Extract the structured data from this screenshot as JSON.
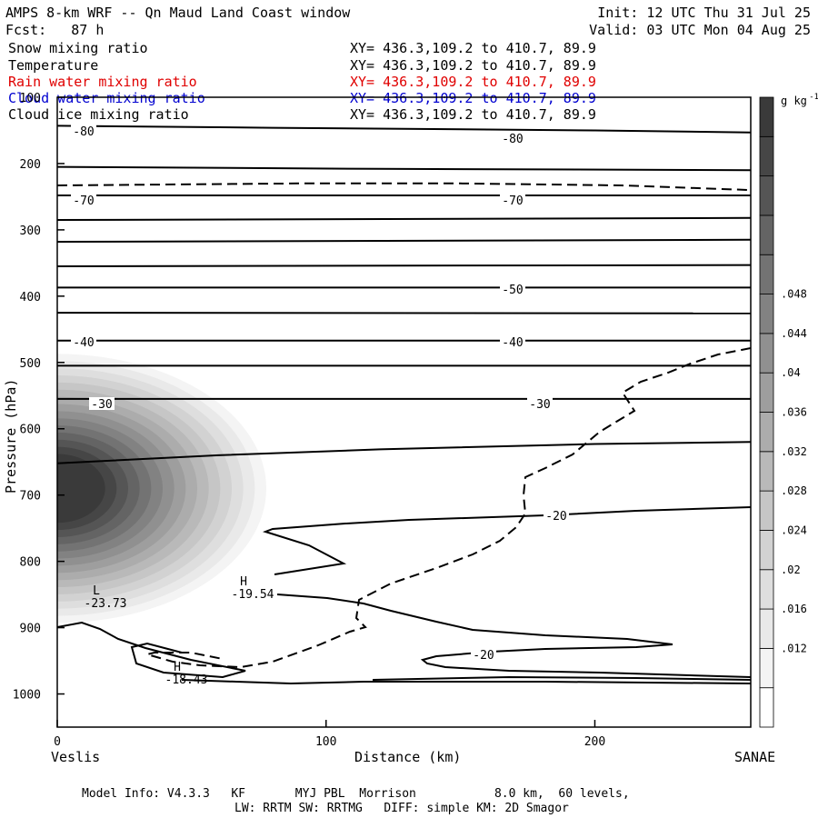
{
  "header": {
    "title": "AMPS 8-km WRF -- Qn Maud Land Coast window",
    "init": "Init: 12 UTC Thu 31 Jul 25",
    "fcst": "Fcst:   87 h",
    "valid": "Valid: 03 UTC Mon 04 Aug 25",
    "fields": [
      {
        "name": "Snow mixing ratio",
        "xy": "XY= 436.3,109.2 to 410.7, 89.9",
        "color": "#000000"
      },
      {
        "name": "Temperature",
        "xy": "XY= 436.3,109.2 to 410.7, 89.9",
        "color": "#000000"
      },
      {
        "name": "Rain water mixing ratio",
        "xy": "XY= 436.3,109.2 to 410.7, 89.9",
        "color": "#e00000"
      },
      {
        "name": "Cloud water mixing ratio",
        "xy": "XY= 436.3,109.2 to 410.7, 89.9",
        "color": "#0000d0"
      },
      {
        "name": "Cloud ice mixing ratio",
        "xy": "XY= 436.3,109.2 to 410.7, 89.9",
        "color": "#000000"
      }
    ]
  },
  "footer": {
    "line1": "Model Info: V4.3.3   KF       MYJ PBL  Morrison           8.0 km,  60 levels,",
    "line2": "LW: RRTM SW: RRTMG   DIFF: simple KM: 2D Smagor"
  },
  "chart_data": {
    "type": "heatmap",
    "xlabel": "Distance (km)",
    "ylabel": "Pressure (hPa)",
    "x_ticks": [
      0,
      100,
      200
    ],
    "y_ticks": [
      100,
      200,
      300,
      400,
      500,
      600,
      700,
      800,
      900,
      1000
    ],
    "xlim": [
      0,
      258
    ],
    "ylim": [
      100,
      1050
    ],
    "start_label": "Veslis",
    "end_label": "SANAE",
    "colorbar": {
      "unit": "g kg",
      "unit_exp": "-1",
      "ticks": [
        ".012",
        ".016",
        ".02",
        ".024",
        ".028",
        ".032",
        ".036",
        ".04",
        ".044",
        ".048"
      ],
      "colors": [
        "#ffffff",
        "#f4f4f4",
        "#e9e9e9",
        "#dedede",
        "#d2d2d2",
        "#c6c6c6",
        "#b9b9b9",
        "#acacac",
        "#9e9e9e",
        "#909090",
        "#828282",
        "#737373",
        "#646464",
        "#555555",
        "#464646",
        "#3a3a3a"
      ]
    },
    "contour_labels": [
      "-80",
      "-70",
      "-50",
      "-40",
      "-30",
      "-20",
      "-80",
      "-70",
      "-40",
      "-30",
      "-20"
    ],
    "extrema": [
      {
        "kind": "L",
        "value": "-23.73"
      },
      {
        "kind": "H",
        "value": "-19.54"
      },
      {
        "kind": "H",
        "value": "-18.43"
      }
    ],
    "isotherms": [
      {
        "value": "-80",
        "points": [
          [
            0,
            143
          ],
          [
            80,
            146
          ],
          [
            200,
            150
          ],
          [
            258,
            153
          ]
        ]
      },
      {
        "value": "",
        "points": [
          [
            0,
            205
          ],
          [
            120,
            208
          ],
          [
            258,
            210
          ]
        ]
      },
      {
        "value": "-70",
        "points": [
          [
            0,
            248
          ],
          [
            150,
            248
          ],
          [
            258,
            248
          ]
        ]
      },
      {
        "value": "",
        "points": [
          [
            0,
            285
          ],
          [
            258,
            282
          ]
        ]
      },
      {
        "value": "",
        "points": [
          [
            0,
            318
          ],
          [
            258,
            315
          ]
        ]
      },
      {
        "value": "",
        "points": [
          [
            0,
            355
          ],
          [
            258,
            353
          ]
        ]
      },
      {
        "value": "-50",
        "points": [
          [
            0,
            387
          ],
          [
            258,
            387
          ]
        ]
      },
      {
        "value": "",
        "points": [
          [
            0,
            425
          ],
          [
            258,
            426
          ]
        ]
      },
      {
        "value": "-40",
        "points": [
          [
            0,
            467
          ],
          [
            258,
            467
          ]
        ]
      },
      {
        "value": "",
        "points": [
          [
            0,
            505
          ],
          [
            258,
            505
          ]
        ]
      },
      {
        "value": "-30",
        "points": [
          [
            0,
            555
          ],
          [
            258,
            555
          ]
        ]
      },
      {
        "value": "",
        "points": [
          [
            0,
            652
          ],
          [
            60,
            640
          ],
          [
            120,
            631
          ],
          [
            200,
            623
          ],
          [
            258,
            620
          ]
        ]
      }
    ],
    "dashed_line": [
      [
        0,
        233
      ],
      [
        90,
        230
      ],
      [
        150,
        230
      ],
      [
        210,
        233
      ],
      [
        258,
        240
      ]
    ]
  }
}
